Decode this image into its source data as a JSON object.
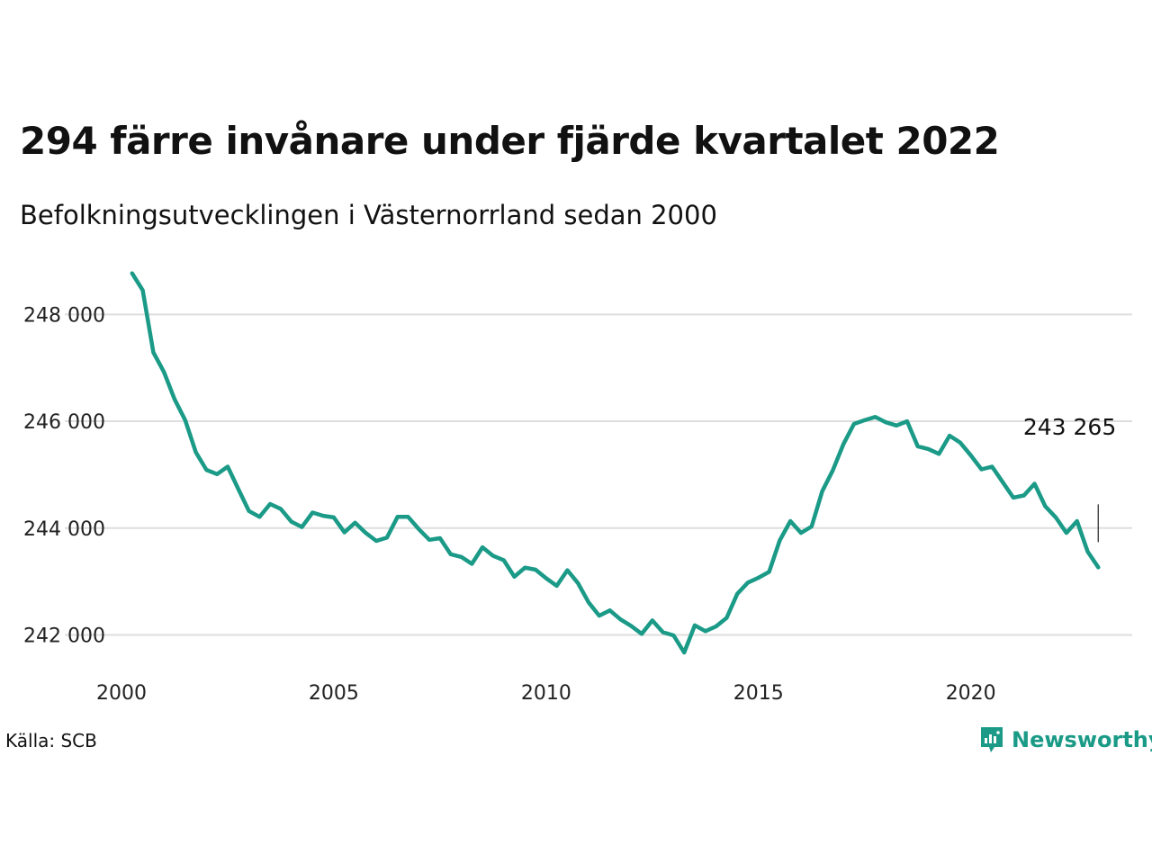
{
  "title": "294 färre invånare under fjärde kvartalet 2022",
  "subtitle": "Befolkningsutvecklingen i Västernorrland sedan 2000",
  "source": "Källa: SCB",
  "brand": {
    "name": "Newsworthy",
    "icon": "newsworthy-logo-icon",
    "color": "#1a9a87"
  },
  "chart_data": {
    "type": "line",
    "title": "294 färre invånare under fjärde kvartalet 2022",
    "subtitle": "Befolkningsutvecklingen i Västernorrland sedan 2000",
    "xlabel": "",
    "ylabel": "",
    "x_ticks": [
      "2000",
      "2005",
      "2010",
      "2015",
      "2020"
    ],
    "y_ticks": [
      {
        "value": 242000,
        "label": "242 000"
      },
      {
        "value": 244000,
        "label": "244 000"
      },
      {
        "value": 246000,
        "label": "246 000"
      },
      {
        "value": 248000,
        "label": "248 000"
      }
    ],
    "ylim": [
      241300,
      249000
    ],
    "xlim": [
      2000,
      2023.8
    ],
    "grid": "horizontal",
    "line_color": "#1a9a87",
    "grid_color": "#dedede",
    "end_label": "243 265",
    "series": [
      {
        "x": [
          2000.25,
          2000.5,
          2000.75,
          2001.0,
          2001.25,
          2001.5,
          2001.75,
          2002.0,
          2002.25,
          2002.5,
          2002.75,
          2003.0,
          2003.25,
          2003.5,
          2003.75,
          2004.0,
          2004.25,
          2004.5,
          2004.75,
          2005.0,
          2005.25,
          2005.5,
          2005.75,
          2006.0,
          2006.25,
          2006.5,
          2006.75,
          2007.0,
          2007.25,
          2007.5,
          2007.75,
          2008.0,
          2008.25,
          2008.5,
          2008.75,
          2009.0,
          2009.25,
          2009.5,
          2009.75,
          2010.0,
          2010.25,
          2010.5,
          2010.75,
          2011.0,
          2011.25,
          2011.5,
          2011.75,
          2012.0,
          2012.25,
          2012.5,
          2012.75,
          2013.0,
          2013.25,
          2013.5,
          2013.75,
          2014.0,
          2014.25,
          2014.5,
          2014.75,
          2015.0,
          2015.25,
          2015.5,
          2015.75,
          2016.0,
          2016.25,
          2016.5,
          2016.75,
          2017.0,
          2017.25,
          2017.5,
          2017.75,
          2018.0,
          2018.25,
          2018.5,
          2018.75,
          2019.0,
          2019.25,
          2019.5,
          2019.75,
          2020.0,
          2020.25,
          2020.5,
          2020.75,
          2021.0,
          2021.25,
          2021.5,
          2021.75,
          2022.0,
          2022.25,
          2022.5,
          2022.75,
          2023.0
        ],
        "values": [
          248770,
          248450,
          247290,
          246920,
          246410,
          246020,
          245420,
          245090,
          245010,
          245150,
          244730,
          244320,
          244210,
          244450,
          244360,
          244120,
          244020,
          244290,
          244230,
          244200,
          243920,
          244100,
          243910,
          243760,
          243820,
          244210,
          244210,
          243980,
          243780,
          243810,
          243510,
          243460,
          243330,
          243640,
          243480,
          243400,
          243090,
          243260,
          243220,
          243060,
          242920,
          243210,
          242970,
          242610,
          242360,
          242460,
          242290,
          242170,
          242020,
          242270,
          242050,
          241990,
          241670,
          242180,
          242070,
          242160,
          242320,
          242770,
          242980,
          243070,
          243180,
          243770,
          244130,
          243910,
          244030,
          244690,
          245080,
          245570,
          245950,
          246020,
          246080,
          245980,
          245920,
          246000,
          245530,
          245480,
          245390,
          245730,
          245600,
          245360,
          245100,
          245150,
          244860,
          244570,
          244610,
          244830,
          244410,
          244200,
          243910,
          244130,
          243560,
          243265
        ]
      }
    ]
  }
}
